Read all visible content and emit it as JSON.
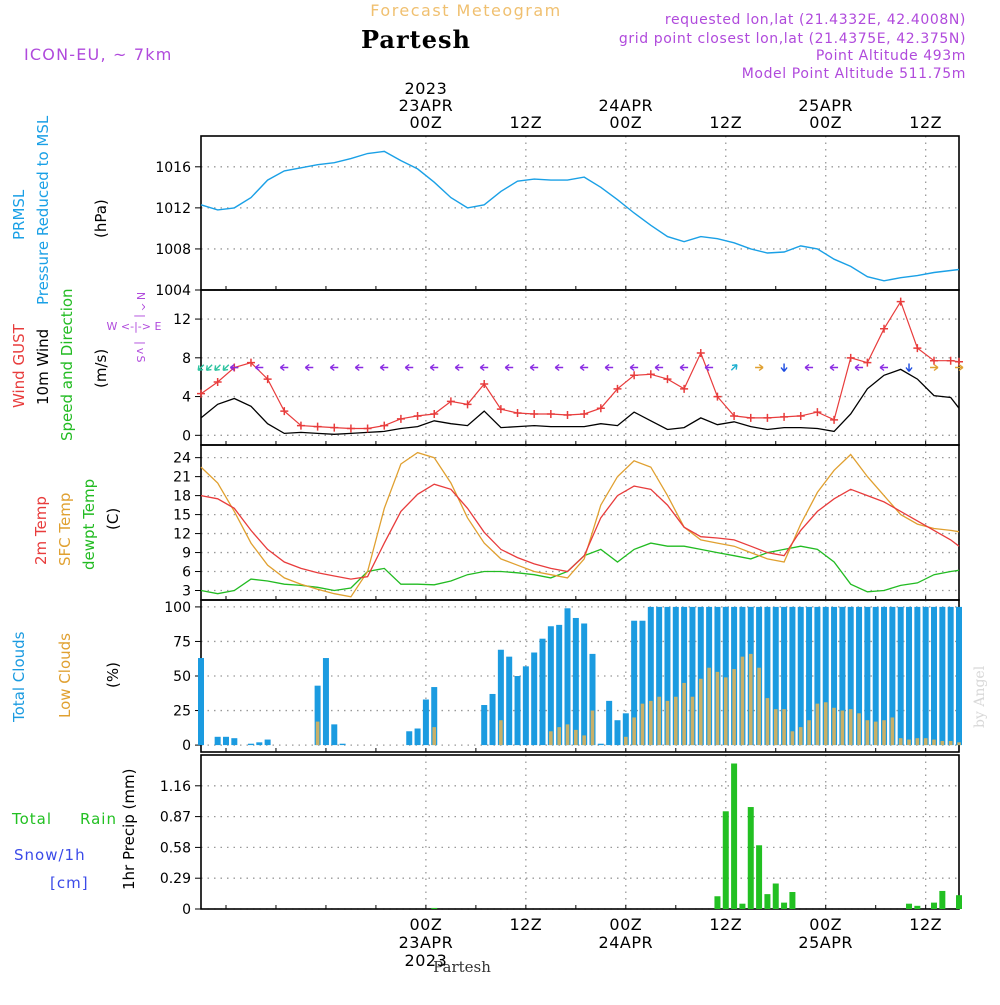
{
  "header": {
    "product": "Forecast Meteogram",
    "location": "Partesh",
    "model": "ICON-EU, ~ 7km",
    "requested": "requested lon,lat (21.4332E, 42.4008N)",
    "grid_point": "grid point closest lon,lat (21.4375E, 42.375N)",
    "point_altitude": "Point Altitude 493m",
    "model_altitude": "Model Point Altitude 511.75m",
    "footer_location": "Partesh",
    "credit": "by Angel"
  },
  "time_axis": {
    "start_hour": -27,
    "end_hour": 64,
    "top_ticks": [
      {
        "hour": 0,
        "lines": [
          "2023",
          "23APR",
          "00Z"
        ]
      },
      {
        "hour": 12,
        "lines": [
          "12Z"
        ]
      },
      {
        "hour": 24,
        "lines": [
          "24APR",
          "00Z"
        ]
      },
      {
        "hour": 36,
        "lines": [
          "12Z"
        ]
      },
      {
        "hour": 48,
        "lines": [
          "25APR",
          "00Z"
        ]
      },
      {
        "hour": 60,
        "lines": [
          "12Z"
        ]
      }
    ],
    "bottom_ticks": [
      {
        "hour": 0,
        "lines": [
          "00Z",
          "23APR",
          "2023"
        ]
      },
      {
        "hour": 12,
        "lines": [
          "12Z"
        ]
      },
      {
        "hour": 24,
        "lines": [
          "00Z",
          "24APR"
        ]
      },
      {
        "hour": 36,
        "lines": [
          "12Z"
        ]
      },
      {
        "hour": 48,
        "lines": [
          "00Z",
          "25APR"
        ]
      },
      {
        "hour": 60,
        "lines": [
          "12Z"
        ]
      }
    ]
  },
  "colors": {
    "pressure": "#1aa0e6",
    "gust": "#e83c3c",
    "wind": "#000000",
    "temp2m": "#e83c3c",
    "sfc": "#e0a030",
    "dewpt": "#22bb22",
    "clouds_total": "#1b9be0",
    "clouds_low": "#c8b068",
    "rain": "#22c022",
    "snow": "#3a4ae8",
    "header_purple": "#b04adc",
    "title_orange": "#f0c070",
    "axis_label": "#2ac22a"
  },
  "panels": {
    "pressure": {
      "labels": [
        "PRMSL",
        "Pressure Reduced to MSL",
        "(hPa)"
      ],
      "yticks": [
        "1016",
        "1012",
        "1008",
        "1004"
      ]
    },
    "wind": {
      "labels": [
        "Wind GUST",
        "10m Wind",
        "Speed and Direction",
        "(m/s)"
      ],
      "compass": [
        "N",
        "^",
        "|",
        "W <-|-> E",
        "|",
        "v",
        "S"
      ],
      "yticks": [
        "12",
        "8",
        "4",
        "0"
      ]
    },
    "temp": {
      "labels": [
        "2m Temp",
        "SFC Temp",
        "dewpt Temp",
        "(C)"
      ],
      "yticks": [
        "24",
        "21",
        "18",
        "15",
        "12",
        "9",
        "6",
        "3"
      ]
    },
    "clouds": {
      "labels": [
        "Total Clouds",
        "Low Clouds",
        "(%)"
      ],
      "yticks": [
        "100",
        "75",
        "50",
        "25",
        "0"
      ]
    },
    "precip": {
      "labels": [
        "Total",
        "Rain",
        "Snow/1h",
        "[cm]",
        "1hr Precip (mm)"
      ],
      "yticks": [
        "1.16",
        "0.87",
        "0.58",
        "0.29",
        "0"
      ]
    }
  },
  "chart_data": [
    {
      "type": "line",
      "name": "pressure",
      "ylim": [
        1004,
        1019
      ],
      "x": [
        -27,
        -25,
        -23,
        -21,
        -19,
        -17,
        -15,
        -13,
        -11,
        -9,
        -7,
        -5,
        -3,
        -1,
        1,
        3,
        5,
        7,
        9,
        11,
        13,
        15,
        17,
        19,
        21,
        23,
        25,
        27,
        29,
        31,
        33,
        35,
        37,
        39,
        41,
        43,
        45,
        47,
        49,
        51,
        53,
        55,
        57,
        59,
        61,
        63,
        64
      ],
      "series": [
        {
          "values": [
            1012.3,
            1011.8,
            1012.0,
            1013.0,
            1014.7,
            1015.6,
            1015.9,
            1016.2,
            1016.4,
            1016.8,
            1017.3,
            1017.5,
            1016.6,
            1015.8,
            1014.5,
            1013.0,
            1012.0,
            1012.3,
            1013.6,
            1014.6,
            1014.8,
            1014.7,
            1014.7,
            1015.0,
            1014.0,
            1012.8,
            1011.5,
            1010.3,
            1009.2,
            1008.7,
            1009.2,
            1009.0,
            1008.6,
            1008.0,
            1007.6,
            1007.7,
            1008.3,
            1008.0,
            1007.0,
            1006.3,
            1005.3,
            1004.9,
            1005.2,
            1005.4,
            1005.7,
            1005.9,
            1006.0
          ]
        }
      ]
    },
    {
      "type": "line",
      "name": "wind",
      "ylim": [
        -1,
        15
      ],
      "x": [
        -27,
        -25,
        -23,
        -21,
        -19,
        -17,
        -15,
        -13,
        -11,
        -9,
        -7,
        -5,
        -3,
        -1,
        1,
        3,
        5,
        7,
        9,
        11,
        13,
        15,
        17,
        19,
        21,
        23,
        25,
        27,
        29,
        31,
        33,
        35,
        37,
        39,
        41,
        43,
        45,
        47,
        49,
        51,
        53,
        55,
        57,
        59,
        61,
        63,
        64
      ],
      "series": [
        {
          "values": [
            4.3,
            5.5,
            7.0,
            7.5,
            5.8,
            2.5,
            1.0,
            0.9,
            0.8,
            0.7,
            0.7,
            1.0,
            1.7,
            2.0,
            2.2,
            3.5,
            3.2,
            5.3,
            2.7,
            2.3,
            2.2,
            2.2,
            2.1,
            2.2,
            2.8,
            4.8,
            6.2,
            6.3,
            5.8,
            4.8,
            8.5,
            4.0,
            2.0,
            1.8,
            1.8,
            1.9,
            2.0,
            2.4,
            1.6,
            8.0,
            7.5,
            11.0,
            13.8,
            9.0,
            7.7,
            7.7,
            7.6
          ]
        },
        {
          "values": [
            1.8,
            3.2,
            3.8,
            3.0,
            1.2,
            0.2,
            0.3,
            0.2,
            0.1,
            0.2,
            0.3,
            0.4,
            0.7,
            0.9,
            1.5,
            1.2,
            1.0,
            2.5,
            0.8,
            0.9,
            1.0,
            0.9,
            0.9,
            0.9,
            1.2,
            1.0,
            2.4,
            1.5,
            0.6,
            0.8,
            1.8,
            1.1,
            1.4,
            0.9,
            0.6,
            0.8,
            0.8,
            0.7,
            0.4,
            2.2,
            4.8,
            6.2,
            6.8,
            5.8,
            4.1,
            3.9,
            2.8
          ]
        }
      ],
      "arrows": [
        {
          "x": -27,
          "dir": "SW"
        },
        {
          "x": -26,
          "dir": "SW"
        },
        {
          "x": -25,
          "dir": "SW"
        },
        {
          "x": -24,
          "dir": "SW"
        },
        {
          "x": -23,
          "dir": "W"
        },
        {
          "x": -20,
          "dir": "W"
        },
        {
          "x": -17,
          "dir": "W"
        },
        {
          "x": -14,
          "dir": "W"
        },
        {
          "x": -11,
          "dir": "W"
        },
        {
          "x": -8,
          "dir": "W"
        },
        {
          "x": -5,
          "dir": "W"
        },
        {
          "x": -2,
          "dir": "W"
        },
        {
          "x": 1,
          "dir": "W"
        },
        {
          "x": 4,
          "dir": "W"
        },
        {
          "x": 7,
          "dir": "W"
        },
        {
          "x": 10,
          "dir": "W"
        },
        {
          "x": 13,
          "dir": "W"
        },
        {
          "x": 16,
          "dir": "W"
        },
        {
          "x": 19,
          "dir": "W"
        },
        {
          "x": 22,
          "dir": "W"
        },
        {
          "x": 25,
          "dir": "W"
        },
        {
          "x": 28,
          "dir": "W"
        },
        {
          "x": 31,
          "dir": "W"
        },
        {
          "x": 34,
          "dir": "W"
        },
        {
          "x": 37,
          "dir": "NE"
        },
        {
          "x": 40,
          "dir": "E"
        },
        {
          "x": 43,
          "dir": "S"
        },
        {
          "x": 46,
          "dir": "W"
        },
        {
          "x": 49,
          "dir": "W"
        },
        {
          "x": 52,
          "dir": "W"
        },
        {
          "x": 55,
          "dir": "W"
        },
        {
          "x": 58,
          "dir": "S"
        },
        {
          "x": 61,
          "dir": "E"
        },
        {
          "x": 64,
          "dir": "E"
        }
      ]
    },
    {
      "type": "line",
      "name": "temperature",
      "ylim": [
        1.5,
        26
      ],
      "x": [
        -27,
        -25,
        -23,
        -21,
        -19,
        -17,
        -15,
        -13,
        -11,
        -9,
        -7,
        -5,
        -3,
        -1,
        1,
        3,
        5,
        7,
        9,
        11,
        13,
        15,
        17,
        19,
        21,
        23,
        25,
        27,
        29,
        31,
        33,
        35,
        37,
        39,
        41,
        43,
        45,
        47,
        49,
        51,
        53,
        55,
        57,
        59,
        61,
        63,
        64
      ],
      "series": [
        {
          "values": [
            18.0,
            17.5,
            16.0,
            12.5,
            9.5,
            7.5,
            6.5,
            5.8,
            5.3,
            4.8,
            5.2,
            10.5,
            15.5,
            18.2,
            19.8,
            19.0,
            16.0,
            12.2,
            9.5,
            8.2,
            7.2,
            6.5,
            6.0,
            8.5,
            14.5,
            18.0,
            19.5,
            19.0,
            16.5,
            13.0,
            11.5,
            11.3,
            11.0,
            10.0,
            9.0,
            8.5,
            12.5,
            15.5,
            17.5,
            19.0,
            18.0,
            17.0,
            15.5,
            14.0,
            12.5,
            11.0,
            10.0
          ]
        },
        {
          "values": [
            22.5,
            20.0,
            15.5,
            10.5,
            7.0,
            5.0,
            4.0,
            3.2,
            2.5,
            2.0,
            6.0,
            16.0,
            23.0,
            24.8,
            24.0,
            20.0,
            14.5,
            10.5,
            8.0,
            7.0,
            6.0,
            5.5,
            5.0,
            8.0,
            16.5,
            21.0,
            23.5,
            22.5,
            18.0,
            13.0,
            11.0,
            10.5,
            10.0,
            9.0,
            8.0,
            7.5,
            13.5,
            18.5,
            22.0,
            24.5,
            21.0,
            18.0,
            15.0,
            13.5,
            12.8,
            12.5,
            12.3
          ]
        },
        {
          "values": [
            3.0,
            2.5,
            3.0,
            4.8,
            4.5,
            4.0,
            3.8,
            3.5,
            3.0,
            3.4,
            6.0,
            6.5,
            4.0,
            4.0,
            3.9,
            4.5,
            5.5,
            6.0,
            6.0,
            5.8,
            5.5,
            5.0,
            6.0,
            8.5,
            9.5,
            7.5,
            9.5,
            10.5,
            10.0,
            10.0,
            9.5,
            9.0,
            8.5,
            8.0,
            9.0,
            9.5,
            10.0,
            9.5,
            7.5,
            4.0,
            2.8,
            3.0,
            3.8,
            4.2,
            5.5,
            6.0,
            6.2
          ]
        }
      ]
    },
    {
      "type": "bar",
      "name": "clouds",
      "ylim": [
        -5,
        105
      ],
      "x": [
        -27,
        -26,
        -25,
        -24,
        -23,
        -22,
        -21,
        -20,
        -19,
        -18,
        -17,
        -16,
        -15,
        -14,
        -13,
        -12,
        -11,
        -10,
        -9,
        -8,
        -7,
        -6,
        -5,
        -4,
        -3,
        -2,
        -1,
        0,
        1,
        2,
        3,
        4,
        5,
        6,
        7,
        8,
        9,
        10,
        11,
        12,
        13,
        14,
        15,
        16,
        17,
        18,
        19,
        20,
        21,
        22,
        23,
        24,
        25,
        26,
        27,
        28,
        29,
        30,
        31,
        32,
        33,
        34,
        35,
        36,
        37,
        38,
        39,
        40,
        41,
        42,
        43,
        44,
        45,
        46,
        47,
        48,
        49,
        50,
        51,
        52,
        53,
        54,
        55,
        56,
        57,
        58,
        59,
        60,
        61,
        62,
        63,
        64
      ],
      "series": [
        {
          "name": "Total Clouds",
          "values": [
            63,
            0,
            6,
            6,
            5,
            0,
            1,
            2,
            4,
            0,
            0,
            0,
            0,
            0,
            43,
            63,
            15,
            1,
            0,
            0,
            0,
            0,
            0,
            0,
            0,
            10,
            12,
            33,
            42,
            0,
            0,
            0,
            0,
            0,
            29,
            37,
            69,
            64,
            50,
            57,
            67,
            77,
            86,
            87,
            99,
            92,
            88,
            66,
            1,
            32,
            18,
            23,
            90,
            90,
            100,
            100,
            100,
            100,
            100,
            100,
            100,
            100,
            100,
            100,
            100,
            100,
            100,
            100,
            100,
            100,
            100,
            100,
            100,
            100,
            100,
            100,
            100,
            100,
            100,
            100,
            100,
            100,
            100,
            100,
            100,
            100,
            100,
            100,
            100,
            100,
            100,
            100
          ]
        },
        {
          "name": "Low Clouds",
          "values": [
            0,
            0,
            0,
            0,
            0,
            0,
            0,
            0,
            0,
            0,
            0,
            0,
            0,
            0,
            17,
            0,
            0,
            0,
            0,
            0,
            0,
            0,
            0,
            0,
            0,
            0,
            0,
            0,
            13,
            0,
            0,
            0,
            0,
            0,
            0,
            0,
            18,
            0,
            0,
            0,
            0,
            0,
            10,
            13,
            15,
            11,
            7,
            25,
            0,
            0,
            0,
            6,
            20,
            30,
            32,
            35,
            32,
            35,
            45,
            35,
            48,
            56,
            53,
            49,
            55,
            64,
            66,
            56,
            34,
            26,
            26,
            10,
            13,
            18,
            30,
            31,
            27,
            25,
            26,
            23,
            18,
            17,
            18,
            20,
            5,
            4,
            5,
            5,
            4,
            3,
            3,
            2
          ]
        }
      ]
    },
    {
      "type": "bar",
      "name": "precip",
      "ylim": [
        0,
        1.45
      ],
      "x": [
        1,
        35,
        36,
        37,
        38,
        39,
        40,
        41,
        42,
        43,
        44,
        45,
        46,
        47,
        48,
        58,
        59,
        61,
        62,
        64
      ],
      "series": [
        {
          "name": "Total Rain",
          "values": [
            0.01,
            0.12,
            0.92,
            1.37,
            0.05,
            0.96,
            0.6,
            0.14,
            0.24,
            0.06,
            0.16,
            0,
            0,
            0,
            0,
            0.05,
            0.03,
            0.06,
            0.17,
            0.13
          ]
        },
        {
          "name": "Snow/1h",
          "values": [
            0,
            0,
            0,
            0,
            0,
            0,
            0,
            0,
            0,
            0,
            0,
            0,
            0,
            0,
            0,
            0,
            0,
            0,
            0,
            0
          ]
        }
      ]
    }
  ]
}
